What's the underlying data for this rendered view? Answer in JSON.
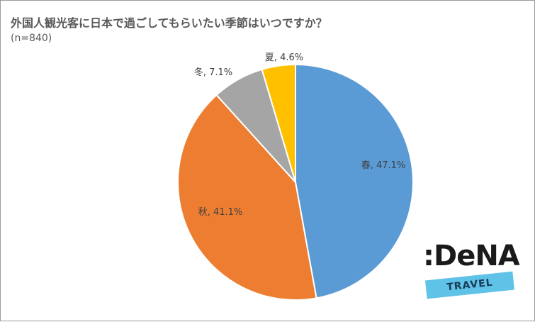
{
  "chart_data": {
    "type": "pie",
    "title": "外国人観光客に日本で過ごしてもらいたい季節はいつですか？",
    "subtitle": "(n=840)",
    "slices": [
      {
        "name": "春",
        "value": 47.1,
        "label": "春, 47.1%",
        "color": "#5b9bd5"
      },
      {
        "name": "秋",
        "value": 41.1,
        "label": "秋, 41.1%",
        "color": "#ed7d31"
      },
      {
        "name": "冬",
        "value": 7.1,
        "label": "冬, 7.1%",
        "color": "#a5a5a5"
      },
      {
        "name": "夏",
        "value": 4.6,
        "label": "夏, 4.6%",
        "color": "#ffc000"
      }
    ]
  },
  "logo": {
    "name": ":DeNA",
    "sub": "TRAVEL"
  }
}
